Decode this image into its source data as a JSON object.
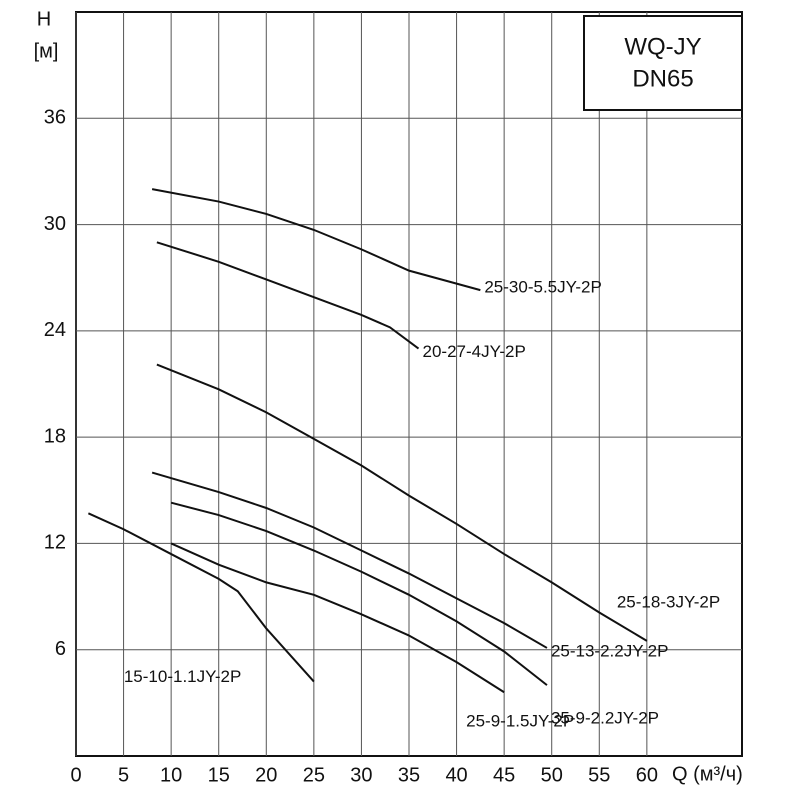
{
  "chart_data": {
    "type": "line",
    "title": "WQ-JY",
    "subtitle": "DN65",
    "y_label": "H",
    "y_unit": "[м]",
    "x_label": "Q (м³/ч)",
    "xlim": [
      0,
      70
    ],
    "xticks": [
      0,
      5,
      10,
      15,
      20,
      25,
      30,
      35,
      40,
      45,
      50,
      55,
      60
    ],
    "ylim": [
      0,
      42
    ],
    "yticks": [
      6,
      12,
      18,
      24,
      30,
      36
    ],
    "grid": true,
    "series": [
      {
        "name": "25-30-5.5JY-2P",
        "color": "#111111",
        "x": [
          8,
          15,
          20,
          25,
          30,
          35,
          42.5
        ],
        "values": [
          32,
          31.3,
          30.6,
          29.7,
          28.6,
          27.4,
          26.3
        ]
      },
      {
        "name": "20-27-4JY-2P",
        "color": "#111111",
        "x": [
          8.5,
          15,
          20,
          25,
          30,
          33,
          36
        ],
        "values": [
          29,
          27.9,
          26.9,
          25.9,
          24.9,
          24.2,
          23
        ]
      },
      {
        "name": "25-18-3JY-2P",
        "color": "#111111",
        "x": [
          8.5,
          15,
          20,
          25,
          30,
          35,
          40,
          45,
          50,
          55,
          60
        ],
        "values": [
          22.1,
          20.7,
          19.4,
          17.9,
          16.4,
          14.7,
          13.1,
          11.4,
          9.8,
          8.1,
          6.5
        ]
      },
      {
        "name": "25-13-2.2JY-2P",
        "color": "#111111",
        "x": [
          8,
          15,
          20,
          25,
          30,
          35,
          40,
          45,
          49.5
        ],
        "values": [
          16,
          14.9,
          14,
          12.9,
          11.6,
          10.3,
          8.9,
          7.5,
          6.1
        ]
      },
      {
        "name": "35-9-2.2JY-2P",
        "color": "#111111",
        "x": [
          10,
          15,
          20,
          25,
          30,
          35,
          40,
          45,
          49.5
        ],
        "values": [
          14.3,
          13.6,
          12.7,
          11.6,
          10.4,
          9.1,
          7.6,
          5.9,
          4
        ]
      },
      {
        "name": "25-9-1.5JY-2P",
        "color": "#111111",
        "x": [
          10,
          15,
          20,
          25,
          30,
          35,
          40,
          45
        ],
        "values": [
          12,
          10.8,
          9.8,
          9.1,
          8,
          6.8,
          5.3,
          3.6
        ]
      },
      {
        "name": "15-10-1.1JY-2P",
        "color": "#111111",
        "x": [
          1.3,
          5,
          10,
          15,
          17,
          20,
          25
        ],
        "values": [
          13.7,
          12.8,
          11.4,
          10,
          9.3,
          7.2,
          4.2
        ]
      }
    ]
  }
}
